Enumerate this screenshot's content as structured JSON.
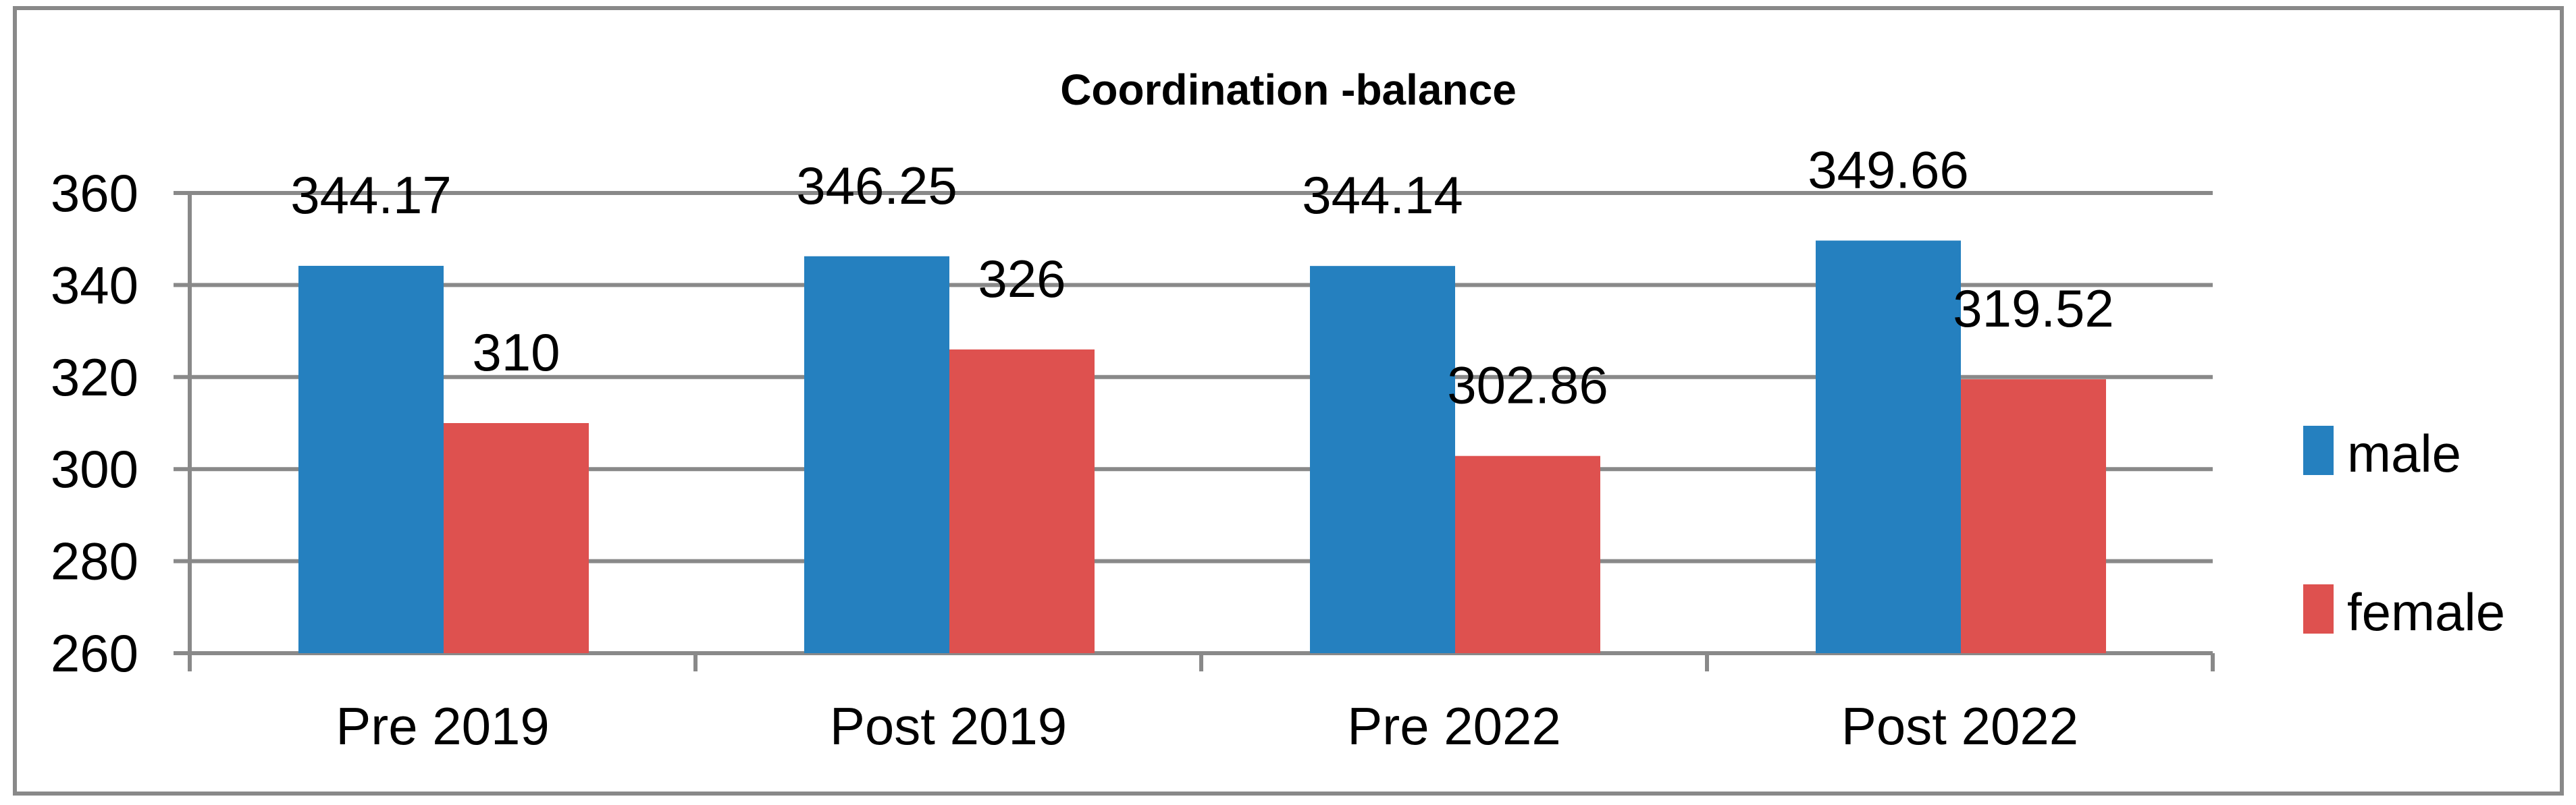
{
  "chart_data": {
    "type": "bar",
    "title": "Coordination -balance",
    "xlabel": "",
    "ylabel": "",
    "categories": [
      "Pre 2019",
      "Post 2019",
      "Pre 2022",
      "Post 2022"
    ],
    "series": [
      {
        "name": "male",
        "color": "#2580BF",
        "values": [
          344.17,
          346.25,
          344.14,
          349.66
        ],
        "labels": [
          "344.17",
          "346.25",
          "344.14",
          "349.66"
        ]
      },
      {
        "name": "female",
        "color": "#DE514F",
        "values": [
          310,
          326,
          302.86,
          319.52
        ],
        "labels": [
          "310",
          "326",
          "302.86",
          "319.52"
        ]
      }
    ],
    "ylim": [
      260,
      360
    ],
    "yticks": [
      260,
      280,
      300,
      320,
      340,
      360
    ],
    "grid": true,
    "legend": "right"
  }
}
